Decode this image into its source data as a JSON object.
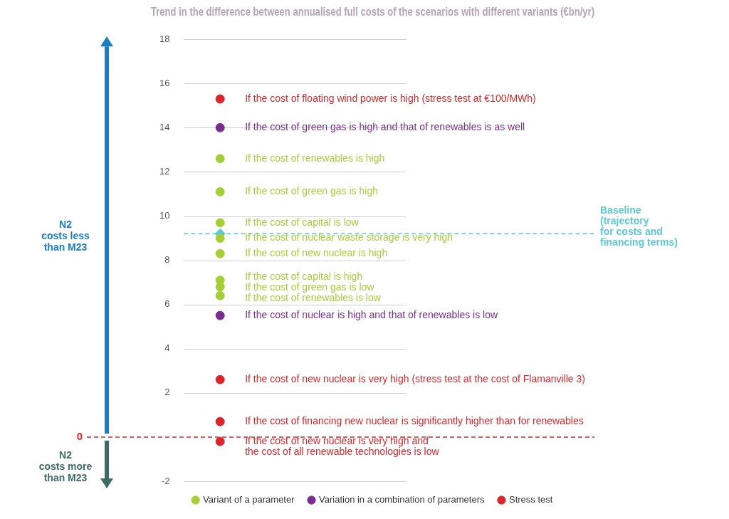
{
  "chart_data": {
    "type": "scatter",
    "title": "Trend in the difference between annualised full costs of the scenarios with different variants (€bn/yr)",
    "series": [
      {
        "name": "Variant of a parameter",
        "color": "#a6ce39",
        "labels": [
          "If the cost of renewables is high",
          "If the cost of green gas is high",
          "If the cost of capital is low",
          "If the cost of nuclear waste storage is very high",
          "If the cost of new nuclear is high",
          "If the cost of capital is high",
          "If the cost of green gas is low",
          "If the cost of renewables is low"
        ],
        "values": [
          12.6,
          11.1,
          9.7,
          9.0,
          8.3,
          7.1,
          6.8,
          6.4
        ]
      },
      {
        "name": "Variation in a combination of parameters",
        "color": "#7a2c8f",
        "labels": [
          "If the cost of green gas is high and that of renewables is as well",
          "If the cost of nuclear is high and that of renewables is low"
        ],
        "values": [
          14.0,
          5.5
        ]
      },
      {
        "name": "Stress test",
        "color": "#d9262b",
        "labels": [
          "If the cost of floating wind power is high (stress test at €100/MWh)",
          "If the cost of new nuclear is very high (stress test at the cost of Flamanville 3)",
          "If the cost of financing new nuclear is significantly higher than for renewables",
          [
            "If the cost of new nuclear is very high and",
            "the cost of all renewable technologies is low"
          ]
        ],
        "values": [
          15.3,
          2.6,
          0.7,
          -0.2
        ]
      }
    ],
    "baseline": {
      "lines": [
        "Baseline",
        "(trajectory",
        "for costs and",
        "financing terms)"
      ],
      "value": 9.2,
      "color": "#5bc8d8"
    },
    "reference_line": {
      "value": 0,
      "label": "0",
      "color": "#d9262b"
    },
    "annotations": [
      {
        "lines": [
          "N2",
          "costs less",
          "than M23"
        ],
        "color": "#1b7dbf"
      },
      {
        "lines": [
          "N2",
          "costs more",
          "than M23"
        ],
        "color": "#3e6b67"
      }
    ],
    "ylim": [
      -2,
      18
    ],
    "yticks": [
      -2,
      2,
      4,
      6,
      8,
      10,
      12,
      14,
      16,
      18
    ],
    "grid": true,
    "legend": "bottom"
  }
}
